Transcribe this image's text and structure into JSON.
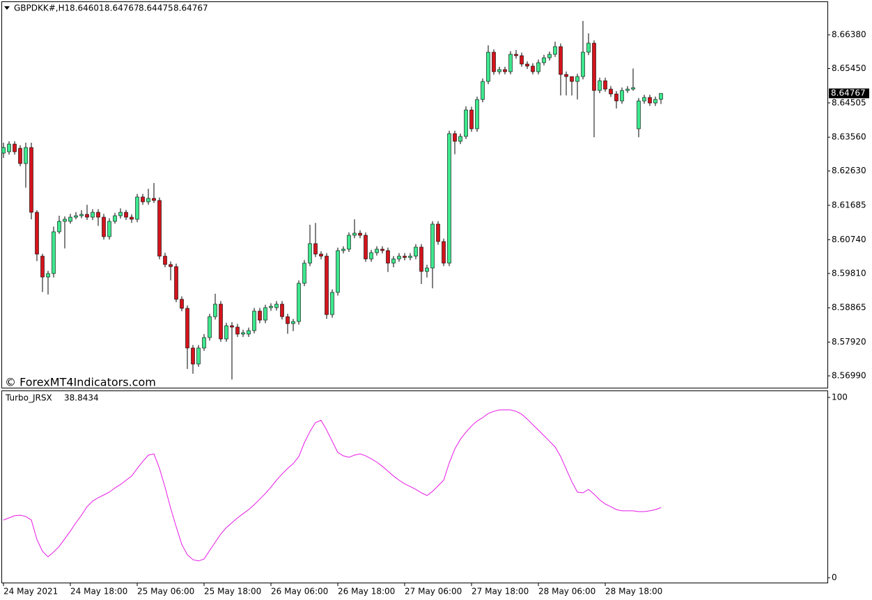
{
  "chart_data": [
    {
      "type": "candlestick",
      "symbol": "GBPDKK#,H1",
      "watermark": "© ForexMT4Indicators.com",
      "up_color": "#3ee88e",
      "down_color": "#d4141c",
      "categories": [
        "24 May 2021",
        null,
        null,
        null,
        null,
        null,
        null,
        null,
        null,
        null,
        null,
        null,
        "24 May 18:00",
        null,
        null,
        null,
        null,
        null,
        null,
        null,
        null,
        null,
        null,
        null,
        "25 May 06:00",
        null,
        null,
        null,
        null,
        null,
        null,
        null,
        null,
        null,
        null,
        null,
        "25 May 18:00",
        null,
        null,
        null,
        null,
        null,
        null,
        null,
        null,
        null,
        null,
        null,
        "26 May 06:00",
        null,
        null,
        null,
        null,
        null,
        null,
        null,
        null,
        null,
        null,
        null,
        "26 May 18:00",
        null,
        null,
        null,
        null,
        null,
        null,
        null,
        null,
        null,
        null,
        null,
        "27 May 06:00",
        null,
        null,
        null,
        null,
        null,
        null,
        null,
        null,
        null,
        null,
        null,
        "27 May 18:00",
        null,
        null,
        null,
        null,
        null,
        null,
        null,
        null,
        null,
        null,
        null,
        "28 May 06:00",
        null,
        null,
        null,
        null,
        null,
        null,
        null,
        null,
        null,
        null,
        null,
        "28 May 18:00",
        null,
        null,
        null,
        null,
        null,
        null,
        null,
        null,
        null,
        null
      ],
      "open": [
        8.63122,
        8.6316,
        8.63371,
        8.63256,
        8.62835,
        8.63276,
        8.61493,
        8.60286,
        8.59711,
        8.59807,
        8.60957,
        8.61244,
        8.61244,
        8.61359,
        8.61398,
        8.61436,
        8.61359,
        8.61493,
        8.61359,
        8.60823,
        8.61244,
        8.61398,
        8.61493,
        8.61359,
        8.61302,
        8.61915,
        8.61781,
        8.61877,
        8.61819,
        8.60286,
        8.60056,
        8.59998,
        8.59098,
        8.58849,
        8.57757,
        8.57316,
        8.57757,
        8.58044,
        8.58619,
        8.58964,
        8.58006,
        8.5837,
        8.58332,
        8.5814,
        8.5814,
        8.58236,
        8.58773,
        8.58524,
        8.58868,
        8.58868,
        8.58964,
        8.58619,
        8.58428,
        8.58485,
        8.59539,
        8.60094,
        8.60631,
        8.60343,
        8.60286,
        8.58677,
        8.5929,
        8.60439,
        8.60478,
        8.60861,
        8.60918,
        8.60861,
        8.60209,
        8.60382,
        8.60478,
        8.60439,
        8.60094,
        8.60209,
        8.60286,
        8.60248,
        8.60286,
        8.60535,
        8.59865,
        8.5996,
        8.61168,
        8.60688,
        8.60094,
        8.63659,
        8.63448,
        8.63582,
        8.6431,
        8.63793,
        8.64598,
        8.65096,
        8.65901,
        8.65364,
        8.65422,
        8.65364,
        8.65843,
        8.65805,
        8.65575,
        8.65518,
        8.65364,
        8.65613,
        8.65747,
        8.65843,
        8.66054,
        8.65288,
        8.6523,
        8.65096,
        8.6523,
        8.65901,
        8.6615,
        8.64847,
        8.65115,
        8.64885,
        8.64751,
        8.64559,
        8.64847,
        8.64885,
        8.63793,
        8.64559,
        8.64655,
        8.64502,
        8.64601
      ],
      "high": [
        8.6341,
        8.6345,
        8.6345,
        8.6334,
        8.6341,
        8.6341,
        8.6155,
        8.6035,
        8.5988,
        8.611,
        8.614,
        8.6138,
        8.6145,
        8.615,
        8.6155,
        8.617,
        8.6158,
        8.6158,
        8.6145,
        8.6133,
        8.6148,
        8.616,
        8.6156,
        8.6144,
        8.62,
        8.62,
        8.6214,
        8.623,
        8.619,
        8.6038,
        8.6014,
        8.6008,
        8.5918,
        8.5893,
        8.5784,
        8.5784,
        8.5814,
        8.587,
        8.5925,
        8.5905,
        8.5845,
        8.5847,
        8.5842,
        8.5826,
        8.5832,
        8.5886,
        8.5886,
        8.5895,
        8.5899,
        8.5905,
        8.5905,
        8.587,
        8.5856,
        8.5962,
        8.6018,
        8.6115,
        8.612,
        8.6042,
        8.6037,
        8.5937,
        8.6052,
        8.6056,
        8.6094,
        8.613,
        8.61,
        8.6094,
        8.6046,
        8.6056,
        8.6056,
        8.6052,
        8.6029,
        8.6037,
        8.6037,
        8.6037,
        8.6062,
        8.6062,
        8.6005,
        8.6125,
        8.6125,
        8.6077,
        8.6374,
        8.6374,
        8.6366,
        8.6441,
        8.644,
        8.6468,
        8.6518,
        8.6609,
        8.6598,
        8.655,
        8.655,
        8.6593,
        8.6596,
        8.6589,
        8.6565,
        8.656,
        8.657,
        8.6583,
        8.6592,
        8.6619,
        8.6614,
        8.6537,
        8.6518,
        8.6531,
        8.6676,
        8.6642,
        8.6623,
        8.652,
        8.652,
        8.6497,
        8.6483,
        8.6493,
        8.6497,
        8.6545,
        8.6464,
        8.6473,
        8.6473,
        8.6468,
        8.64767
      ],
      "low": [
        8.6299,
        8.6308,
        8.6308,
        8.6276,
        8.6217,
        8.613,
        8.6015,
        8.593,
        8.5923,
        8.597,
        8.609,
        8.605,
        8.6118,
        8.613,
        8.6133,
        8.6128,
        8.6128,
        8.6112,
        8.6074,
        8.6074,
        8.6118,
        8.6132,
        8.6128,
        8.612,
        8.6122,
        8.617,
        8.617,
        8.6175,
        8.602,
        8.5998,
        8.5962,
        8.5902,
        8.5877,
        8.5718,
        8.5705,
        8.5724,
        8.5768,
        8.5796,
        8.5854,
        8.5793,
        8.5793,
        8.5689,
        8.5806,
        8.5806,
        8.5806,
        8.5816,
        8.5844,
        8.5844,
        8.5878,
        8.5879,
        8.5854,
        8.5815,
        8.5822,
        8.584,
        8.5946,
        8.6001,
        8.6026,
        8.602,
        8.5856,
        8.5859,
        8.592,
        8.6036,
        8.604,
        8.6078,
        8.6078,
        8.6013,
        8.6013,
        8.603,
        8.6036,
        8.5985,
        8.5998,
        8.6013,
        8.6017,
        8.6017,
        8.602,
        8.5952,
        8.597,
        8.594,
        8.606,
        8.6001,
        8.6001,
        8.6309,
        8.6337,
        8.6351,
        8.6371,
        8.6371,
        8.6452,
        8.6502,
        8.6528,
        8.6529,
        8.6529,
        8.6529,
        8.6572,
        8.655,
        8.6544,
        8.6529,
        8.6529,
        8.6554,
        8.6567,
        8.6577,
        8.6471,
        8.6471,
        8.6471,
        8.646,
        8.6515,
        8.6582,
        8.6356,
        8.6477,
        8.6481,
        8.6467,
        8.6435,
        8.6448,
        8.6478,
        8.6484,
        8.6356,
        8.6448,
        8.6442,
        8.6442,
        8.64475
      ],
      "close": [
        8.63276,
        8.63371,
        8.6316,
        8.62835,
        8.63276,
        8.61493,
        8.60343,
        8.59711,
        8.59807,
        8.60957,
        8.61244,
        8.61302,
        8.61359,
        8.61398,
        8.61436,
        8.61359,
        8.61493,
        8.61359,
        8.60823,
        8.61244,
        8.61398,
        8.61493,
        8.61359,
        8.61302,
        8.61915,
        8.61781,
        8.61877,
        8.61819,
        8.60286,
        8.60056,
        8.59998,
        8.59098,
        8.58849,
        8.57757,
        8.57316,
        8.57757,
        8.58044,
        8.58619,
        8.58964,
        8.58006,
        8.5837,
        8.58332,
        8.5814,
        8.58178,
        8.58236,
        8.58773,
        8.58524,
        8.58868,
        8.58906,
        8.58964,
        8.58619,
        8.58428,
        8.58485,
        8.59539,
        8.60094,
        8.60631,
        8.60343,
        8.60286,
        8.58677,
        8.5929,
        8.60439,
        8.60478,
        8.60861,
        8.60918,
        8.60861,
        8.60209,
        8.60382,
        8.60478,
        8.60439,
        8.60094,
        8.60209,
        8.60286,
        8.60248,
        8.60286,
        8.60535,
        8.59865,
        8.5996,
        8.61168,
        8.60688,
        8.60094,
        8.63659,
        8.63448,
        8.63582,
        8.6431,
        8.63793,
        8.64598,
        8.65096,
        8.65901,
        8.65364,
        8.65422,
        8.65364,
        8.65843,
        8.65805,
        8.65575,
        8.65518,
        8.65364,
        8.65613,
        8.65747,
        8.65843,
        8.66054,
        8.65288,
        8.6523,
        8.65096,
        8.6523,
        8.65901,
        8.6615,
        8.64847,
        8.65115,
        8.64885,
        8.64751,
        8.64559,
        8.64847,
        8.64885,
        8.64924,
        8.64559,
        8.64655,
        8.64502,
        8.64601,
        8.64767
      ],
      "ylim": [
        8.56645,
        8.67338
      ],
      "yticks": [
        {
          "value": 8.6638,
          "label": "8.66380"
        },
        {
          "value": 8.6545,
          "label": "8.65450"
        },
        8.64505,
        {
          "value": 8.6356,
          "label": "8.63560"
        },
        {
          "value": 8.6263,
          "label": "8.62630"
        },
        8.61685,
        {
          "value": 8.6074,
          "label": "8.60740"
        },
        {
          "value": 8.5981,
          "label": "8.59810"
        },
        8.58865,
        {
          "value": 8.5792,
          "label": "8.57920"
        },
        {
          "value": 8.5699,
          "label": "8.56990"
        }
      ]
    },
    {
      "type": "line",
      "series": [
        {
          "name": "Turbo_JRSX",
          "color": "#e619e6",
          "values": [
            32.0,
            33.2,
            34.4,
            34.7,
            34.0,
            32.0,
            21.2,
            14.7,
            11.6,
            14.3,
            17.4,
            21.6,
            25.9,
            30.5,
            34.7,
            39.4,
            42.5,
            44.4,
            45.9,
            47.5,
            49.8,
            51.7,
            54.1,
            56.4,
            60.6,
            64.5,
            68.0,
            68.7,
            60.6,
            50.2,
            38.6,
            28.2,
            18.5,
            12.7,
            10.0,
            9.3,
            10.4,
            15.1,
            19.7,
            24.3,
            27.8,
            30.5,
            33.2,
            35.5,
            37.8,
            40.5,
            43.6,
            46.7,
            50.2,
            54.1,
            57.5,
            60.6,
            63.3,
            67.2,
            74.9,
            81.1,
            86.1,
            87.3,
            81.9,
            75.7,
            69.5,
            67.6,
            66.8,
            68.0,
            68.7,
            67.6,
            66.0,
            64.1,
            61.8,
            59.1,
            56.4,
            54.1,
            52.1,
            50.6,
            49.0,
            47.1,
            45.6,
            47.9,
            51.0,
            54.1,
            63.7,
            71.4,
            76.8,
            80.7,
            84.2,
            86.9,
            88.8,
            91.1,
            92.3,
            93.1,
            93.1,
            93.1,
            92.3,
            90.7,
            88.0,
            84.9,
            81.9,
            78.8,
            75.7,
            72.6,
            67.2,
            60.2,
            53.3,
            47.5,
            47.1,
            49.0,
            46.3,
            43.2,
            40.9,
            39.4,
            37.8,
            37.1,
            37.1,
            37.1,
            36.7,
            36.7,
            37.1,
            37.8,
            38.8434
          ]
        }
      ],
      "ylim": [
        0,
        100
      ],
      "yticks": [
        0,
        100
      ]
    }
  ]
}
